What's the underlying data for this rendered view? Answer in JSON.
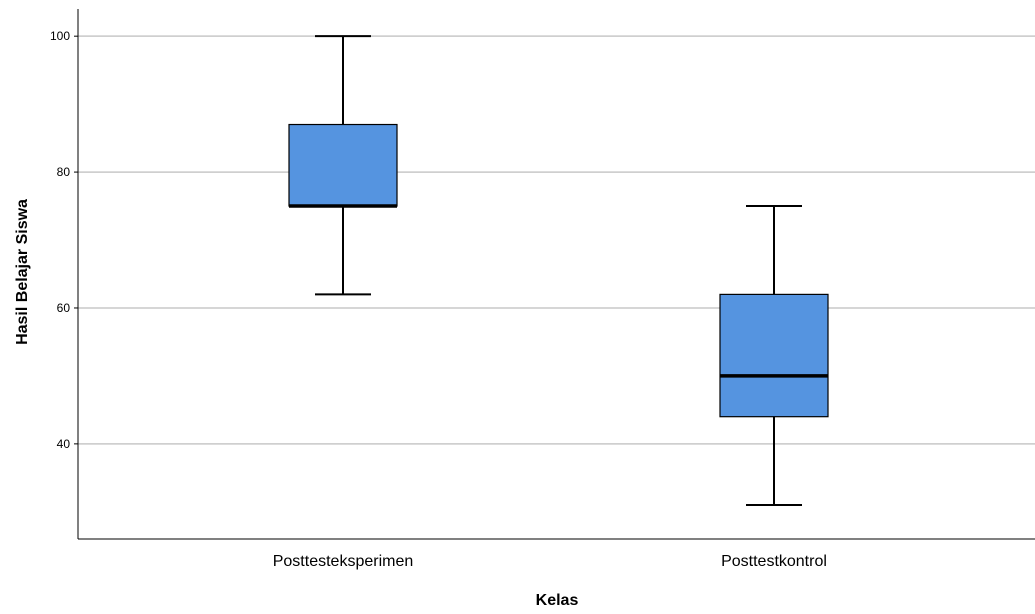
{
  "chart_data": {
    "type": "box",
    "xlabel": "Kelas",
    "ylabel": "Hasil Belajar Siswa",
    "ylim": [
      26,
      104
    ],
    "yticks": [
      40,
      60,
      80,
      100
    ],
    "grid": true,
    "categories": [
      "Posttesteksperimen",
      "Posttestkontrol"
    ],
    "boxes": [
      {
        "category": "Posttesteksperimen",
        "min": 62,
        "q1": 75,
        "median": 75,
        "q3": 87,
        "max": 100
      },
      {
        "category": "Posttestkontrol",
        "min": 31,
        "q1": 44,
        "median": 50,
        "q3": 62,
        "max": 75
      }
    ],
    "box_color": "#5594E0",
    "grid_color": "#C8C8C8"
  }
}
